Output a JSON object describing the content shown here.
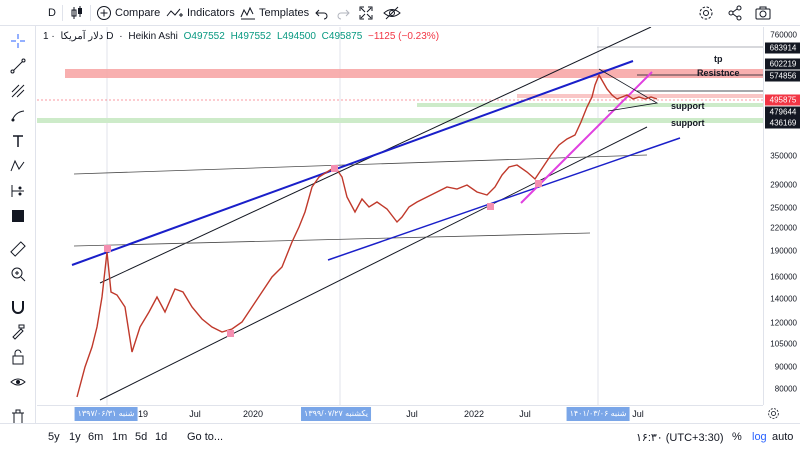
{
  "toolbar": {
    "symbol_button": "D",
    "compare_label": "Compare",
    "indicators_label": "Indicators",
    "templates_label": "Templates"
  },
  "legend": {
    "symbol": "دلار آمریکا",
    "interval": "1D",
    "chart_style": "Heikin Ashi",
    "open": "O497552",
    "high": "H497552",
    "low": "L494500",
    "close": "C495875",
    "change": "−1125 (−0.23%)"
  },
  "annotations": {
    "tp": "tp",
    "resistance": "Resistnce",
    "support_1": "support",
    "support_2": "support"
  },
  "price_scale": {
    "ticks": [
      "760000",
      "350000",
      "290000",
      "250000",
      "220000",
      "190000",
      "160000",
      "140000",
      "120000",
      "105000",
      "90000",
      "80000"
    ],
    "badges": [
      {
        "value": "683914",
        "color": "#131722"
      },
      {
        "value": "602219",
        "color": "#131722"
      },
      {
        "value": "574856",
        "color": "#131722"
      },
      {
        "value": "495875",
        "color": "#f23645"
      },
      {
        "value": "479644",
        "color": "#131722"
      },
      {
        "value": "436169",
        "color": "#131722"
      }
    ]
  },
  "time_scale": {
    "ticks": [
      "19",
      "Jul",
      "2020",
      "Jul",
      "2022",
      "Jul",
      "Jul"
    ],
    "badges": [
      "شنبه ۱۳۹۷/۰۶/۳۱",
      "یکشنبه ۱۳۹۹/۰۷/۲۷",
      "شنبه ۱۴۰۱/۰۳/۰۶"
    ]
  },
  "bottombar": {
    "ranges": [
      "5y",
      "1y",
      "6m",
      "1m",
      "5d",
      "1d"
    ],
    "goto": "Go to...",
    "clock": "۱۶:۳۰ (UTC+3:30)",
    "percent": "%",
    "log": "log",
    "auto": "auto"
  },
  "colors": {
    "resistance_zone": "#f7a6a6",
    "support_zone": "#cdebc9",
    "trend_blue": "#1a1fc9",
    "trend_magenta": "#e040e0",
    "candles": "#c0392b"
  }
}
